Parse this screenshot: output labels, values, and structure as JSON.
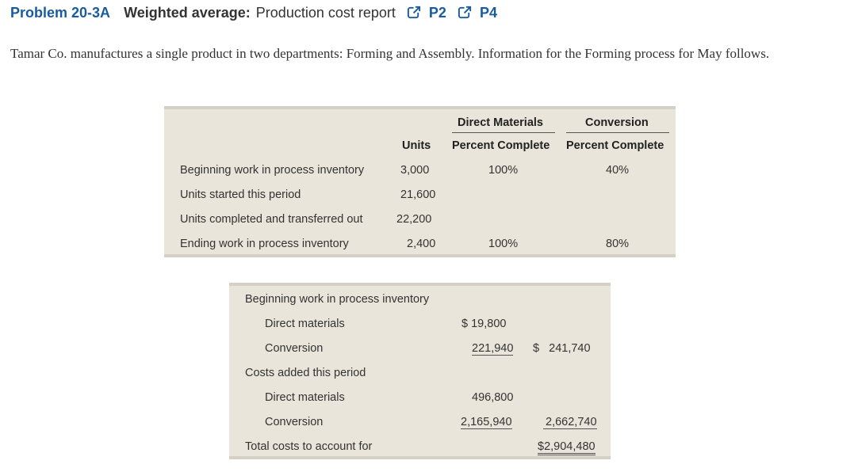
{
  "heading": {
    "problem_number": "Problem 20-3A",
    "label": "Weighted average:",
    "subtitle": "Production cost report",
    "refs": [
      "P2",
      "P4"
    ],
    "ref_icon": "external-link-icon"
  },
  "intro": "Tamar Co. manufactures a single product in two departments: Forming and Assembly. Information for the Forming process for May follows.",
  "units_table": {
    "group_headers": {
      "direct_materials": "Direct Materials",
      "conversion": "Conversion"
    },
    "col_headers": {
      "units": "Units",
      "dm": "Percent Complete",
      "conv": "Percent Complete"
    },
    "rows": [
      {
        "label": "Beginning work in process inventory",
        "units": "3,000",
        "dm": "100%",
        "conv": "40%"
      },
      {
        "label": "Units started this period",
        "units": "21,600",
        "dm": "",
        "conv": ""
      },
      {
        "label": "Units completed and transferred out",
        "units": "22,200",
        "dm": "",
        "conv": ""
      },
      {
        "label": "Ending work in process inventory",
        "units": "2,400",
        "dm": "100%",
        "conv": "80%"
      }
    ]
  },
  "cost_table": {
    "beginning_header": "Beginning work in process inventory",
    "beg_dm_label": "Direct materials",
    "beg_dm_value": "$ 19,800",
    "beg_conv_label": "Conversion",
    "beg_conv_value": "221,940",
    "beg_total": "$   241,740",
    "added_header": "Costs added this period",
    "add_dm_label": "Direct materials",
    "add_dm_value": "496,800",
    "add_conv_label": "Conversion",
    "add_conv_value": "2,165,940",
    "add_total": "2,662,740",
    "total_label": "Total costs to account for",
    "total_value": "$2,904,480"
  }
}
